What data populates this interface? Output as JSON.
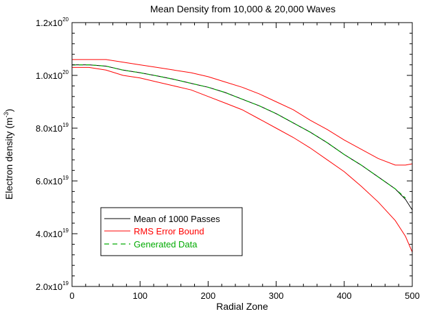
{
  "chart_data": {
    "type": "line",
    "title": "Mean Density from 10,000 & 20,000 Waves",
    "xlabel": "Radial Zone",
    "ylabel_main": "Electron density (m",
    "ylabel_exp": "-3",
    "ylabel_close": ")",
    "xlim": [
      0,
      500
    ],
    "ylim": [
      2e+19,
      1.2e+20
    ],
    "grid": false,
    "legend_position": "bottom-left",
    "x_ticks": [
      {
        "value": 0,
        "label": "0"
      },
      {
        "value": 100,
        "label": "100"
      },
      {
        "value": 200,
        "label": "200"
      },
      {
        "value": 300,
        "label": "300"
      },
      {
        "value": 400,
        "label": "400"
      },
      {
        "value": 500,
        "label": "500"
      }
    ],
    "y_ticks": [
      {
        "value": 2e+19,
        "mantissa": "2.0x10",
        "exponent": "19"
      },
      {
        "value": 4e+19,
        "mantissa": "4.0x10",
        "exponent": "19"
      },
      {
        "value": 6e+19,
        "mantissa": "6.0x10",
        "exponent": "19"
      },
      {
        "value": 8e+19,
        "mantissa": "8.0x10",
        "exponent": "19"
      },
      {
        "value": 1e+20,
        "mantissa": "1.0x10",
        "exponent": "20"
      },
      {
        "value": 1.2e+20,
        "mantissa": "1.2x10",
        "exponent": "20"
      }
    ],
    "series": [
      {
        "name": "Mean of 1000 Passes",
        "color": "#000000",
        "dash": "solid",
        "x": [
          0,
          25,
          50,
          75,
          100,
          125,
          150,
          175,
          200,
          225,
          250,
          275,
          300,
          325,
          350,
          375,
          400,
          425,
          450,
          475,
          490,
          500
        ],
        "y": [
          1.04e+20,
          1.04e+20,
          1.035e+20,
          1.02e+20,
          1.01e+20,
          9.98e+19,
          9.85e+19,
          9.7e+19,
          9.55e+19,
          9.35e+19,
          9.1e+19,
          8.85e+19,
          8.55e+19,
          8.2e+19,
          7.85e+19,
          7.45e+19,
          7e+19,
          6.6e+19,
          6.15e+19,
          5.7e+19,
          5.3e+19,
          4.9e+19
        ]
      },
      {
        "name": "RMS Error Bound",
        "color": "#ff0000",
        "dash": "solid",
        "x": [
          0,
          25,
          50,
          75,
          100,
          125,
          150,
          175,
          200,
          225,
          250,
          275,
          300,
          325,
          350,
          375,
          400,
          425,
          450,
          475,
          490,
          500
        ],
        "y": [
          1.06e+20,
          1.06e+20,
          1.06e+20,
          1.05e+20,
          1.04e+20,
          1.03e+20,
          1.02e+20,
          1.01e+20,
          9.95e+19,
          9.75e+19,
          9.55e+19,
          9.3e+19,
          9e+19,
          8.7e+19,
          8.3e+19,
          7.95e+19,
          7.55e+19,
          7.2e+19,
          6.85e+19,
          6.6e+19,
          6.6e+19,
          6.65e+19
        ]
      },
      {
        "name": "RMS Error Bound (lower)",
        "color": "#ff0000",
        "dash": "solid",
        "legend": false,
        "x": [
          0,
          25,
          50,
          75,
          100,
          125,
          150,
          175,
          200,
          225,
          250,
          275,
          300,
          325,
          350,
          375,
          400,
          425,
          450,
          475,
          490,
          500
        ],
        "y": [
          1.03e+20,
          1.03e+20,
          1.02e+20,
          1e+20,
          9.9e+19,
          9.75e+19,
          9.6e+19,
          9.45e+19,
          9.2e+19,
          8.95e+19,
          8.7e+19,
          8.35e+19,
          8e+19,
          7.65e+19,
          7.25e+19,
          6.8e+19,
          6.35e+19,
          5.8e+19,
          5.2e+19,
          4.5e+19,
          3.9e+19,
          3.3e+19
        ]
      },
      {
        "name": "Generated Data",
        "color": "#00aa00",
        "dash": "dashed",
        "x": [
          0,
          25,
          50,
          75,
          100,
          125,
          150,
          175,
          200,
          225,
          250,
          275,
          300,
          325,
          350,
          375,
          400,
          425,
          450,
          475,
          490
        ],
        "y": [
          1.04e+20,
          1.04e+20,
          1.035e+20,
          1.02e+20,
          1.01e+20,
          9.98e+19,
          9.85e+19,
          9.7e+19,
          9.55e+19,
          9.35e+19,
          9.1e+19,
          8.85e+19,
          8.55e+19,
          8.2e+19,
          7.85e+19,
          7.45e+19,
          7e+19,
          6.6e+19,
          6.15e+19,
          5.7e+19,
          5.35e+19
        ]
      }
    ]
  }
}
